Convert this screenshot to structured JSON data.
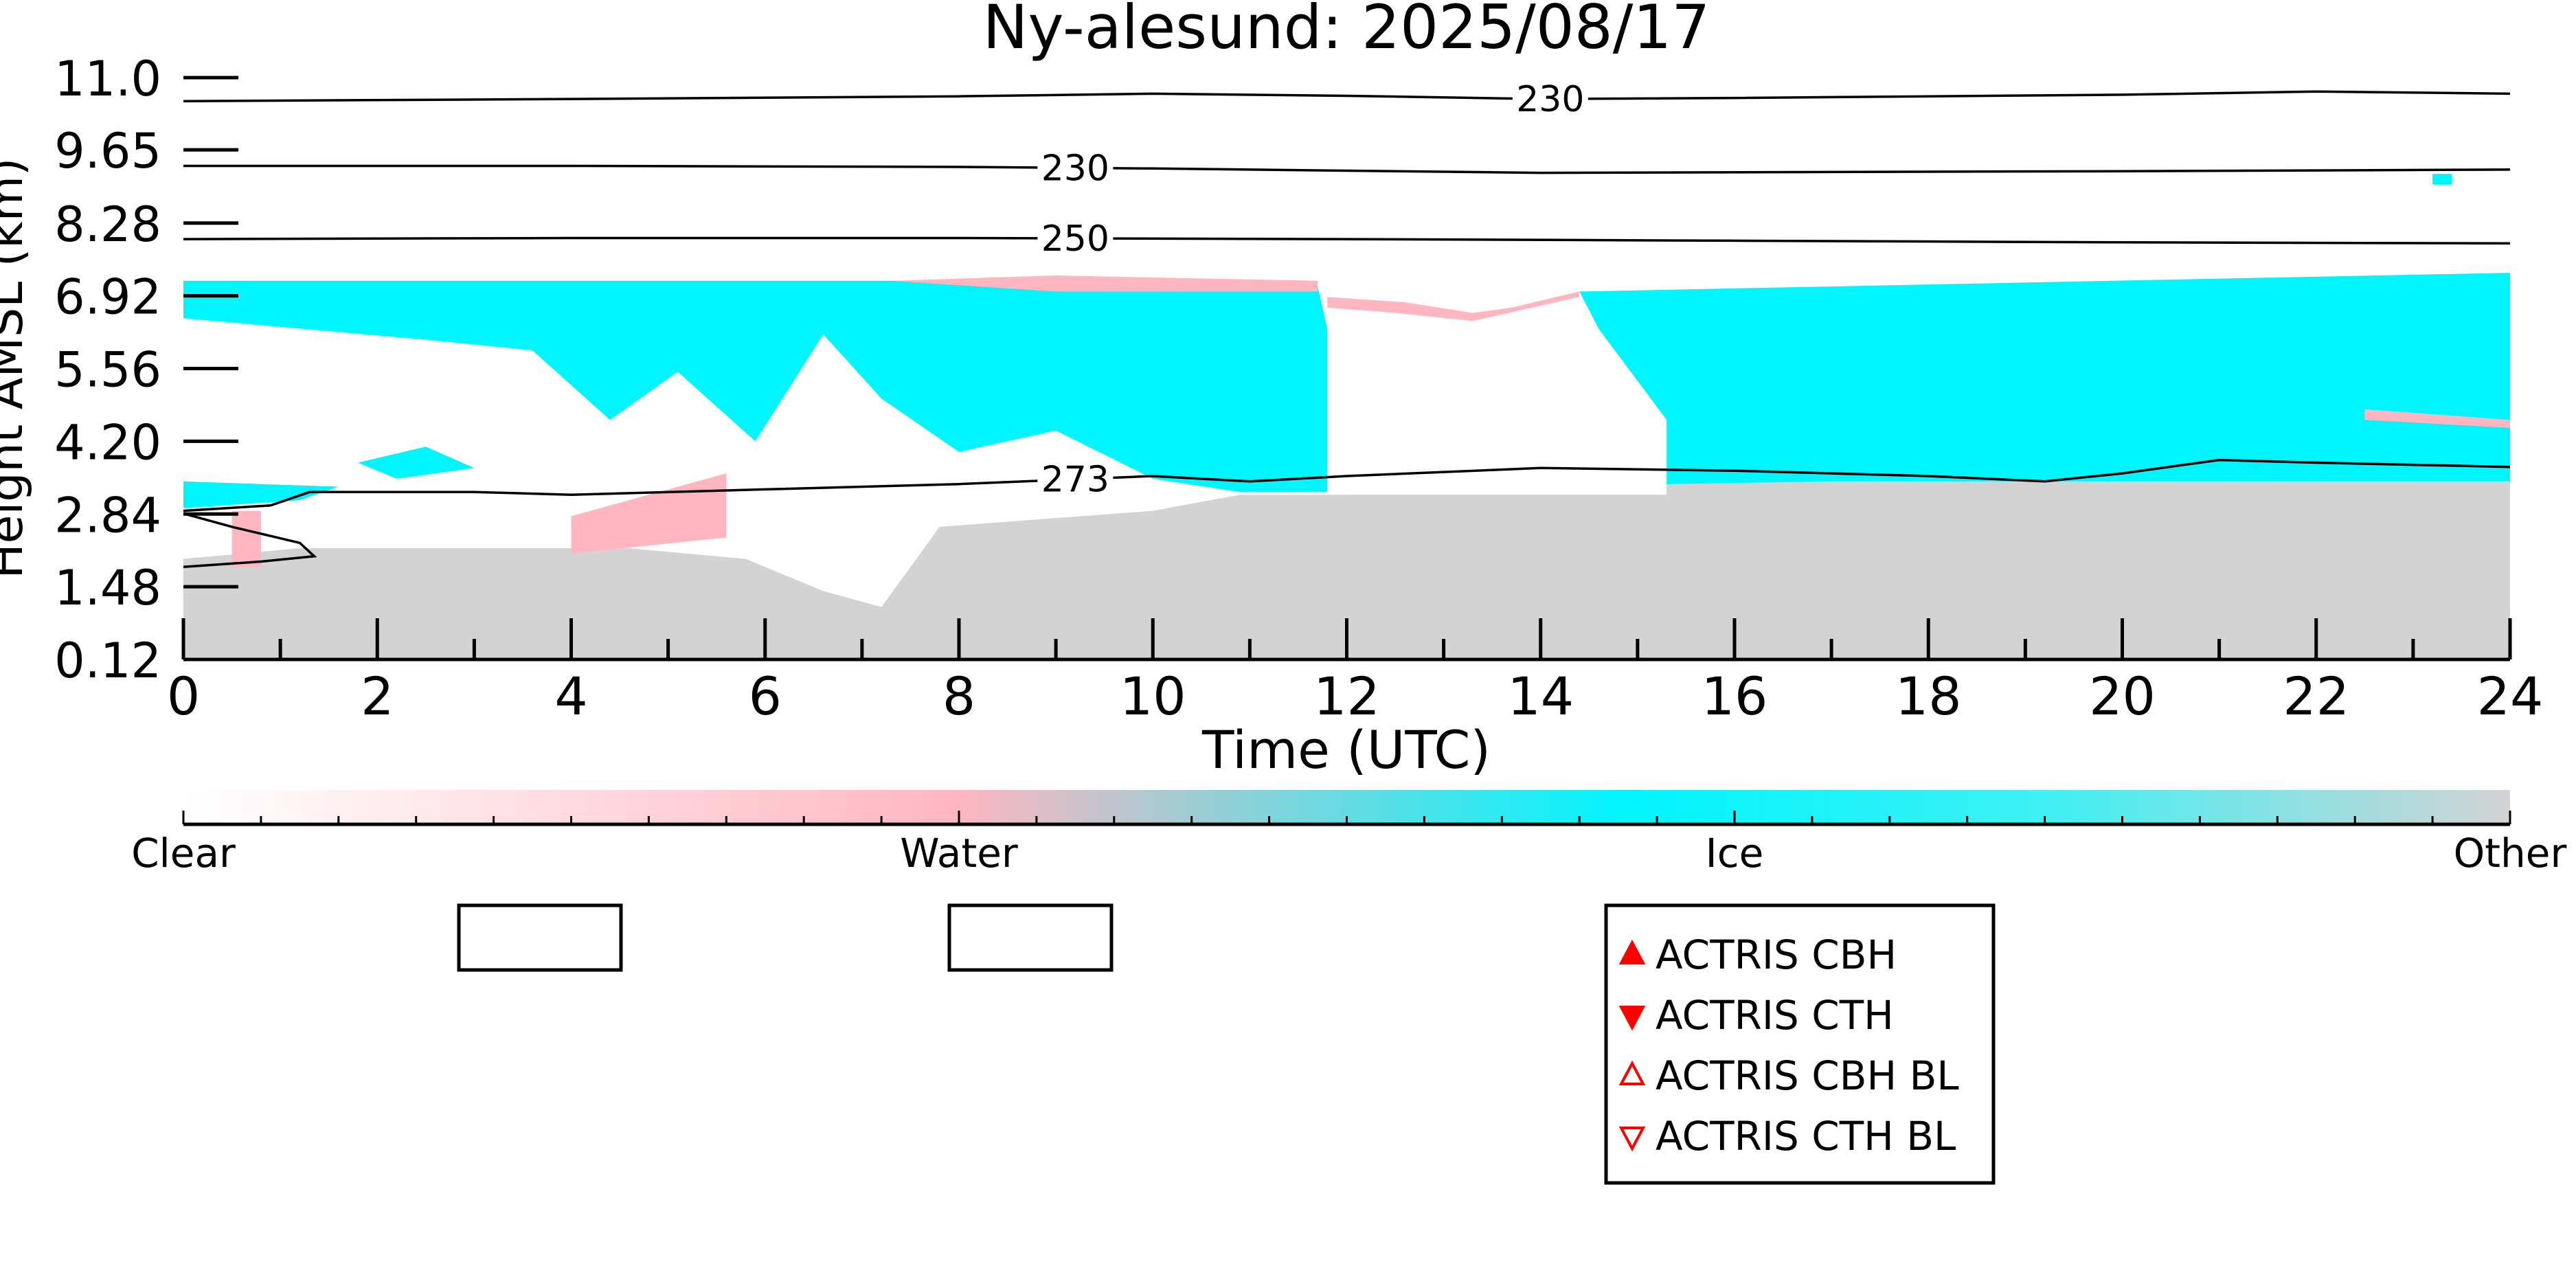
{
  "chart_data": {
    "type": "heatmap",
    "title": "Ny-alesund: 2025/08/17",
    "xlabel": "Time (UTC)",
    "ylabel": "Height AMSL (km)",
    "xlim": [
      0,
      24
    ],
    "ylim": [
      0.12,
      11.0
    ],
    "x_ticks": [
      "0",
      "2",
      "4",
      "6",
      "8",
      "10",
      "12",
      "14",
      "16",
      "18",
      "20",
      "22",
      "24"
    ],
    "y_ticks": [
      "0.12",
      "1.48",
      "2.84",
      "4.20",
      "5.56",
      "6.92",
      "8.28",
      "9.65",
      "11.0"
    ],
    "classes": [
      {
        "label": "Clear",
        "color": "#ffffff"
      },
      {
        "label": "Water",
        "color": "#ffb6c1"
      },
      {
        "label": "Ice",
        "color": "#00f5ff"
      },
      {
        "label": "Other",
        "color": "#d3d3d3"
      }
    ],
    "regions": [
      {
        "class": "Other",
        "polygon": [
          [
            0,
            0.12
          ],
          [
            0,
            2.0
          ],
          [
            1.2,
            2.2
          ],
          [
            4.6,
            2.2
          ],
          [
            5.8,
            2.0
          ],
          [
            6.6,
            1.4
          ],
          [
            7.2,
            1.1
          ],
          [
            7.8,
            2.6
          ],
          [
            10,
            2.9
          ],
          [
            10.9,
            3.2
          ],
          [
            15.3,
            3.2
          ],
          [
            15.3,
            3.45
          ],
          [
            17,
            3.45
          ],
          [
            20,
            3.5
          ],
          [
            24,
            3.5
          ],
          [
            24,
            0.12
          ]
        ]
      },
      {
        "class": "Other",
        "polygon": [
          [
            12,
            1.8
          ],
          [
            15.2,
            1.8
          ],
          [
            15.2,
            3.2
          ],
          [
            12,
            3.2
          ]
        ]
      },
      {
        "class": "Ice",
        "polygon": [
          [
            0,
            6.5
          ],
          [
            0,
            7.2
          ],
          [
            3,
            7.2
          ],
          [
            7,
            7.2
          ],
          [
            8,
            7.2
          ],
          [
            11.7,
            7.1
          ],
          [
            11.8,
            6.3
          ],
          [
            11.8,
            3.25
          ],
          [
            10.9,
            3.25
          ],
          [
            10,
            3.5
          ],
          [
            9,
            4.4
          ],
          [
            8,
            4.0
          ],
          [
            7.2,
            5.0
          ],
          [
            6.6,
            6.2
          ],
          [
            5.9,
            4.2
          ],
          [
            5.1,
            5.5
          ],
          [
            4.4,
            4.6
          ],
          [
            3.6,
            5.9
          ],
          [
            2.5,
            6.1
          ]
        ]
      },
      {
        "class": "Ice",
        "polygon": [
          [
            14.4,
            7.0
          ],
          [
            24,
            7.35
          ],
          [
            24,
            3.45
          ],
          [
            17,
            3.45
          ],
          [
            15.3,
            3.4
          ],
          [
            15.3,
            4.6
          ],
          [
            14.6,
            6.3
          ]
        ]
      },
      {
        "class": "Ice",
        "polygon": [
          [
            0,
            2.95
          ],
          [
            1.2,
            3.1
          ],
          [
            1.6,
            3.35
          ],
          [
            0,
            3.45
          ]
        ]
      },
      {
        "class": "Ice",
        "polygon": [
          [
            1.8,
            3.8
          ],
          [
            2.5,
            4.1
          ],
          [
            3.0,
            3.7
          ],
          [
            2.2,
            3.5
          ]
        ]
      },
      {
        "class": "Water",
        "polygon": [
          [
            7.3,
            7.2
          ],
          [
            9,
            7.3
          ],
          [
            11.7,
            7.2
          ],
          [
            11.7,
            7.0
          ],
          [
            9,
            7.0
          ]
        ]
      },
      {
        "class": "Water",
        "polygon": [
          [
            11.8,
            6.9
          ],
          [
            12.6,
            6.8
          ],
          [
            13.3,
            6.6
          ],
          [
            13.7,
            6.7
          ],
          [
            14.4,
            7.0
          ],
          [
            14.4,
            6.9
          ],
          [
            13.3,
            6.45
          ],
          [
            12.5,
            6.6
          ],
          [
            11.8,
            6.7
          ]
        ]
      },
      {
        "class": "Water",
        "polygon": [
          [
            4.0,
            2.1
          ],
          [
            5.6,
            2.4
          ],
          [
            5.6,
            3.6
          ],
          [
            4.0,
            2.8
          ]
        ]
      },
      {
        "class": "Water",
        "polygon": [
          [
            22.5,
            4.8
          ],
          [
            24,
            4.6
          ],
          [
            24,
            4.45
          ],
          [
            22.5,
            4.6
          ]
        ]
      },
      {
        "class": "Water",
        "polygon": [
          [
            0.5,
            1.85
          ],
          [
            0.8,
            1.85
          ],
          [
            0.8,
            2.9
          ],
          [
            0.5,
            2.9
          ]
        ]
      },
      {
        "class": "Ice",
        "polygon": [
          [
            23.2,
            9.2
          ],
          [
            23.4,
            9.2
          ],
          [
            23.4,
            9.0
          ],
          [
            23.2,
            9.0
          ]
        ]
      }
    ],
    "contours": [
      {
        "label": "230",
        "points": [
          [
            0,
            10.56
          ],
          [
            4,
            10.6
          ],
          [
            8,
            10.65
          ],
          [
            10,
            10.7
          ],
          [
            12,
            10.66
          ],
          [
            14,
            10.6
          ],
          [
            16,
            10.62
          ],
          [
            20,
            10.68
          ],
          [
            22,
            10.74
          ],
          [
            24,
            10.7
          ]
        ],
        "label_at": 14.1
      },
      {
        "label": "230",
        "points": [
          [
            0,
            9.35
          ],
          [
            4,
            9.35
          ],
          [
            8,
            9.33
          ],
          [
            10,
            9.3
          ],
          [
            14,
            9.22
          ],
          [
            20,
            9.25
          ],
          [
            24,
            9.28
          ]
        ],
        "label_at": 9.2
      },
      {
        "label": "250",
        "points": [
          [
            0,
            7.98
          ],
          [
            4,
            8.0
          ],
          [
            8,
            8.0
          ],
          [
            12,
            7.98
          ],
          [
            16,
            7.95
          ],
          [
            20,
            7.92
          ],
          [
            24,
            7.9
          ]
        ],
        "label_at": 9.2
      },
      {
        "label": "273",
        "points": [
          [
            0,
            2.9
          ],
          [
            0.9,
            3.0
          ],
          [
            1.3,
            3.25
          ],
          [
            3,
            3.25
          ],
          [
            4,
            3.2
          ],
          [
            6,
            3.3
          ],
          [
            8,
            3.4
          ],
          [
            10,
            3.55
          ],
          [
            11,
            3.45
          ],
          [
            12,
            3.55
          ],
          [
            14,
            3.7
          ],
          [
            16,
            3.65
          ],
          [
            18,
            3.55
          ],
          [
            19.2,
            3.45
          ],
          [
            20,
            3.6
          ],
          [
            21,
            3.85
          ],
          [
            22,
            3.8
          ],
          [
            24,
            3.72
          ]
        ],
        "label_at": 9.2
      },
      {
        "label": "",
        "points": [
          [
            0,
            2.85
          ],
          [
            0.5,
            2.6
          ],
          [
            1.2,
            2.3
          ],
          [
            1.35,
            2.05
          ],
          [
            0.8,
            1.95
          ],
          [
            0,
            1.85
          ]
        ],
        "label_at": null
      }
    ],
    "colorbar": {
      "labels": [
        "Clear",
        "Water",
        "Ice",
        "Other"
      ]
    },
    "legend": {
      "placement": "bottom",
      "entries": [
        {
          "label": "ACTRIS CBH",
          "marker": "triangle-up-filled",
          "color": "#ff0000"
        },
        {
          "label": "ACTRIS CTH",
          "marker": "triangle-down-filled",
          "color": "#ff0000"
        },
        {
          "label": "ACTRIS CBH BL",
          "marker": "triangle-up-open",
          "color": "#ff0000"
        },
        {
          "label": "ACTRIS CTH BL",
          "marker": "triangle-down-open",
          "color": "#ff0000"
        }
      ]
    }
  }
}
